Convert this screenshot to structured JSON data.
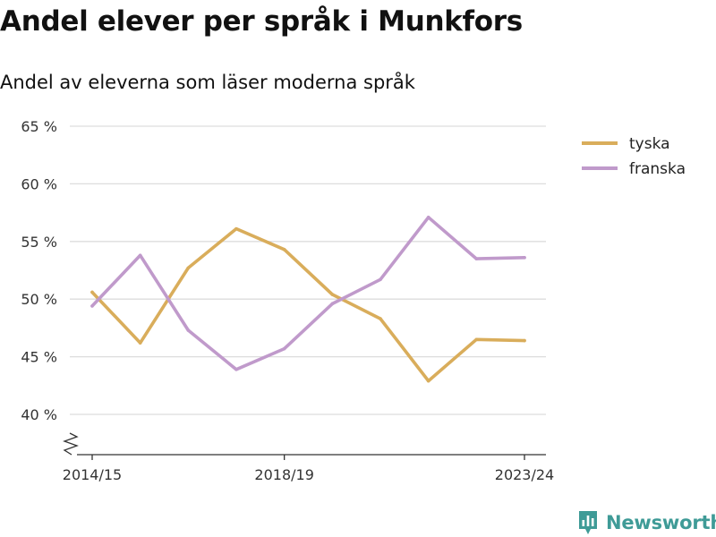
{
  "page": {
    "title": "Andel elever per språk i Munkfors",
    "subtitle": "Andel av eleverna som läser moderna språk",
    "brand": "Newsworthy"
  },
  "colors": {
    "tyska": "#d9ad5b",
    "franska": "#c09acb",
    "grid": "#dddddd",
    "axis": "#333333",
    "brand": "#3f9b97"
  },
  "icons": {
    "axis_break": "zigzag-break-icon",
    "brand": "newsworthy-logo-icon"
  },
  "chart_data": {
    "type": "line",
    "title": "Andel elever per språk i Munkfors",
    "subtitle": "Andel av eleverna som läser moderna språk",
    "xlabel": "",
    "ylabel": "",
    "x": [
      "2014/15",
      "2015/16",
      "2016/17",
      "2017/18",
      "2018/19",
      "2019/20",
      "2020/21",
      "2021/22",
      "2022/23",
      "2023/24"
    ],
    "x_tick_labels": [
      "2014/15",
      "2018/19",
      "2023/24"
    ],
    "y_tick_values": [
      40,
      45,
      50,
      55,
      60,
      65
    ],
    "y_tick_labels": [
      "40 %",
      "45 %",
      "50 %",
      "55 %",
      "60 %",
      "65 %"
    ],
    "ylim": [
      40,
      65
    ],
    "y_axis_break": true,
    "grid": "horizontal",
    "legend_position": "right",
    "series": [
      {
        "name": "tyska",
        "color": "#d9ad5b",
        "values": [
          50.6,
          46.2,
          52.7,
          56.1,
          54.3,
          50.4,
          48.3,
          42.9,
          46.5,
          46.4
        ]
      },
      {
        "name": "franska",
        "color": "#c09acb",
        "values": [
          49.4,
          53.8,
          47.3,
          43.9,
          45.7,
          49.6,
          51.7,
          57.1,
          53.5,
          53.6
        ]
      }
    ]
  }
}
